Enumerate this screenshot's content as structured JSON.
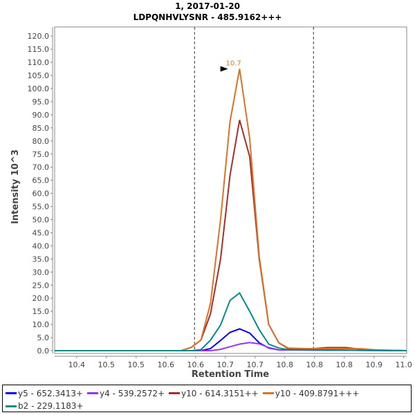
{
  "chart_data": {
    "type": "line",
    "title": "1, 2017-01-20",
    "subtitle": "LDPQNHVLYSNR - 485.9162+++",
    "xlabel": "Retention Time",
    "ylabel": "Intensity 10^3",
    "xlim": [
      10.363,
      10.955
    ],
    "ylim": [
      0,
      123
    ],
    "x_tick_values": [
      10.4,
      10.45,
      10.5,
      10.55,
      10.6,
      10.65,
      10.7,
      10.75,
      10.8,
      10.85,
      10.9,
      10.95
    ],
    "x_tick_labels": [
      "10.4",
      "10.5",
      "10.5",
      "10.6",
      "10.6",
      "10.7",
      "10.7",
      "10.8",
      "10.8",
      "10.8",
      "10.9",
      "11.0"
    ],
    "y_ticks": [
      "0.0",
      "5.0",
      "10.0",
      "15.0",
      "20.0",
      "25.0",
      "30.0",
      "35.0",
      "40.0",
      "45.0",
      "50.0",
      "55.0",
      "60.0",
      "65.0",
      "70.0",
      "75.0",
      "80.0",
      "85.0",
      "90.0",
      "95.0",
      "100.0",
      "105.0",
      "110.0",
      "115.0",
      "120.0"
    ],
    "grid": false,
    "vlines": [
      10.6,
      10.8
    ],
    "annotation": {
      "text": "10.7",
      "x": 10.658,
      "y": 107.5
    },
    "legend_position": "bottom",
    "series": [
      {
        "name": "y5 - 652.3413+",
        "color": "#0000ff",
        "x": [
          10.363,
          10.609,
          10.625,
          10.642,
          10.658,
          10.674,
          10.691,
          10.707,
          10.723,
          10.74,
          10.955
        ],
        "y": [
          0,
          0,
          0.8,
          3.9,
          7,
          8.3,
          6.7,
          3,
          1,
          0.3,
          0
        ]
      },
      {
        "name": "y4 - 539.2572+",
        "color": "#9933ee",
        "x": [
          10.363,
          10.625,
          10.642,
          10.658,
          10.674,
          10.691,
          10.707,
          10.723,
          10.74,
          10.955
        ],
        "y": [
          0,
          0,
          0.5,
          1.5,
          2.5,
          3.1,
          2.6,
          1.2,
          0.3,
          0
        ]
      },
      {
        "name": "y10 - 614.3151++",
        "color": "#aa2a2a",
        "x": [
          10.363,
          10.576,
          10.593,
          10.609,
          10.625,
          10.642,
          10.658,
          10.674,
          10.691,
          10.707,
          10.723,
          10.74,
          10.756,
          10.787,
          10.822,
          10.853,
          10.88,
          10.903,
          10.955
        ],
        "y": [
          0,
          0,
          1.3,
          4,
          14,
          35,
          67,
          88,
          74,
          35,
          10,
          3,
          0.8,
          0.6,
          1.2,
          1.2,
          0.5,
          0.2,
          0
        ]
      },
      {
        "name": "y10 - 409.8791+++",
        "color": "#e07020",
        "x": [
          10.363,
          10.576,
          10.593,
          10.609,
          10.625,
          10.642,
          10.658,
          10.674,
          10.691,
          10.707,
          10.723,
          10.74,
          10.756,
          10.787,
          10.822,
          10.853,
          10.88,
          10.903,
          10.955
        ],
        "y": [
          0,
          0,
          1.3,
          4,
          18,
          50,
          87.5,
          107.5,
          81,
          36,
          10,
          3,
          1,
          0.8,
          0.8,
          0.8,
          0.7,
          0.3,
          0
        ]
      },
      {
        "name": "b2 - 229.1183+",
        "color": "#008b8b",
        "x": [
          10.363,
          10.593,
          10.609,
          10.625,
          10.642,
          10.658,
          10.674,
          10.691,
          10.707,
          10.723,
          10.74,
          10.756,
          10.955
        ],
        "y": [
          0,
          0,
          0.4,
          4,
          9.8,
          19.2,
          22,
          15,
          8,
          2.5,
          1,
          0.4,
          0
        ]
      }
    ]
  }
}
